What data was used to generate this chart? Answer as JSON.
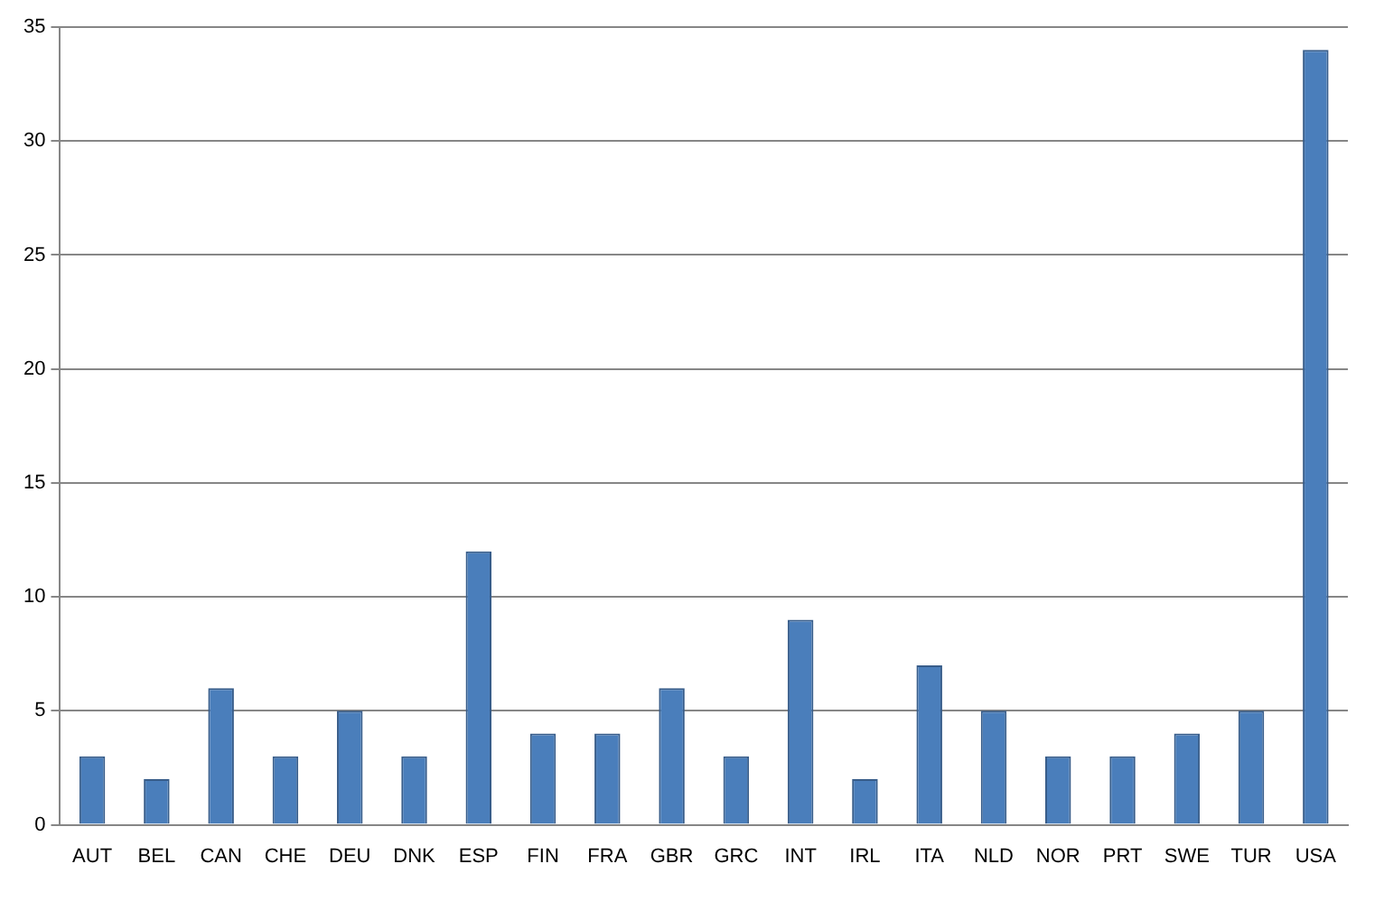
{
  "chart_data": {
    "type": "bar",
    "categories": [
      "AUT",
      "BEL",
      "CAN",
      "CHE",
      "DEU",
      "DNK",
      "ESP",
      "FIN",
      "FRA",
      "GBR",
      "GRC",
      "INT",
      "IRL",
      "ITA",
      "NLD",
      "NOR",
      "PRT",
      "SWE",
      "TUR",
      "USA"
    ],
    "values": [
      3,
      2,
      6,
      3,
      5,
      3,
      12,
      4,
      4,
      6,
      3,
      9,
      2,
      7,
      5,
      3,
      3,
      4,
      5,
      34
    ],
    "color": "#4a7ebb",
    "ylim": [
      0,
      35
    ],
    "yticks": [
      0,
      5,
      10,
      15,
      20,
      25,
      30,
      35
    ],
    "grid": "y"
  }
}
